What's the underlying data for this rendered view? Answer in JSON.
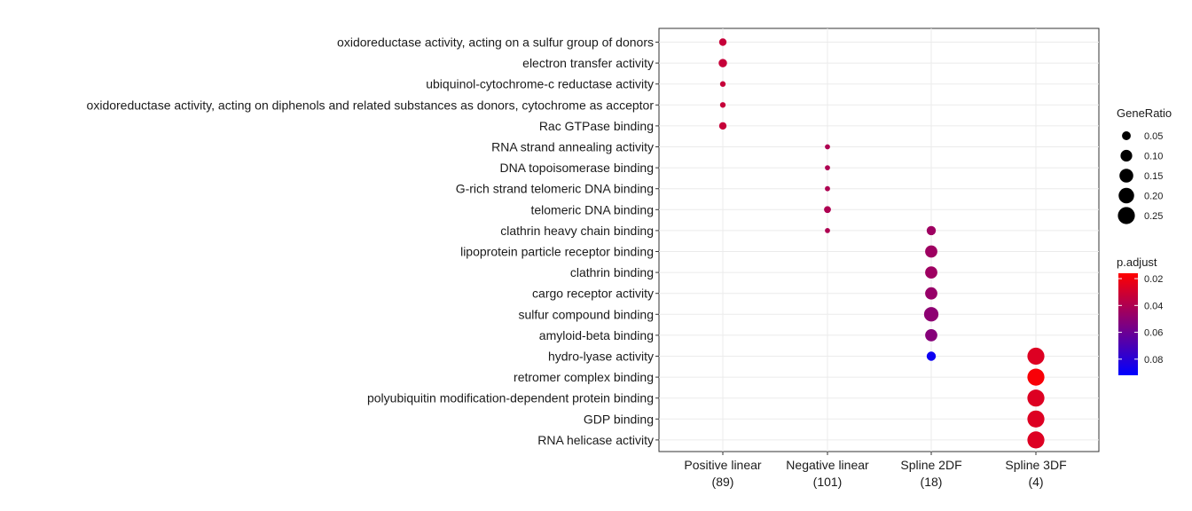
{
  "chart_data": {
    "type": "scatter",
    "title": "",
    "xlabel": "",
    "ylabel": "",
    "grid": true,
    "legend_placement": "right",
    "categories": [
      {
        "label": "Positive linear",
        "count": "(89)"
      },
      {
        "label": "Negative linear",
        "count": "(101)"
      },
      {
        "label": "Spline 2DF",
        "count": "(18)"
      },
      {
        "label": "Spline 3DF",
        "count": "(4)"
      }
    ],
    "terms": [
      "oxidoreductase activity, acting on a sulfur group of donors",
      "electron transfer activity",
      "ubiquinol-cytochrome-c reductase activity",
      "oxidoreductase activity, acting on diphenols and related substances as donors, cytochrome as acceptor",
      "Rac GTPase binding",
      "RNA strand annealing activity",
      "DNA topoisomerase binding",
      "G-rich strand telomeric DNA binding",
      "telomeric DNA binding",
      "clathrin heavy chain binding",
      "lipoprotein particle receptor binding",
      "clathrin binding",
      "cargo receptor activity",
      "sulfur compound binding",
      "amyloid-beta binding",
      "hydro-lyase activity",
      "retromer complex binding",
      "polyubiquitin modification-dependent protein binding",
      "GDP binding",
      "RNA helicase activity"
    ],
    "points": [
      {
        "cluster": 0,
        "term": 0,
        "gene_ratio": 0.035,
        "p_adjust": 0.033
      },
      {
        "cluster": 0,
        "term": 1,
        "gene_ratio": 0.045,
        "p_adjust": 0.033
      },
      {
        "cluster": 0,
        "term": 2,
        "gene_ratio": 0.022,
        "p_adjust": 0.033
      },
      {
        "cluster": 0,
        "term": 3,
        "gene_ratio": 0.022,
        "p_adjust": 0.033
      },
      {
        "cluster": 0,
        "term": 4,
        "gene_ratio": 0.035,
        "p_adjust": 0.033
      },
      {
        "cluster": 1,
        "term": 5,
        "gene_ratio": 0.02,
        "p_adjust": 0.04
      },
      {
        "cluster": 1,
        "term": 6,
        "gene_ratio": 0.02,
        "p_adjust": 0.04
      },
      {
        "cluster": 1,
        "term": 7,
        "gene_ratio": 0.02,
        "p_adjust": 0.04
      },
      {
        "cluster": 1,
        "term": 8,
        "gene_ratio": 0.03,
        "p_adjust": 0.04
      },
      {
        "cluster": 1,
        "term": 9,
        "gene_ratio": 0.02,
        "p_adjust": 0.04
      },
      {
        "cluster": 2,
        "term": 9,
        "gene_ratio": 0.056,
        "p_adjust": 0.045
      },
      {
        "cluster": 2,
        "term": 10,
        "gene_ratio": 0.111,
        "p_adjust": 0.045
      },
      {
        "cluster": 2,
        "term": 11,
        "gene_ratio": 0.111,
        "p_adjust": 0.045
      },
      {
        "cluster": 2,
        "term": 12,
        "gene_ratio": 0.111,
        "p_adjust": 0.047
      },
      {
        "cluster": 2,
        "term": 13,
        "gene_ratio": 0.167,
        "p_adjust": 0.05
      },
      {
        "cluster": 2,
        "term": 14,
        "gene_ratio": 0.111,
        "p_adjust": 0.052
      },
      {
        "cluster": 2,
        "term": 15,
        "gene_ratio": 0.056,
        "p_adjust": 0.088
      },
      {
        "cluster": 3,
        "term": 15,
        "gene_ratio": 0.25,
        "p_adjust": 0.026
      },
      {
        "cluster": 3,
        "term": 16,
        "gene_ratio": 0.25,
        "p_adjust": 0.018
      },
      {
        "cluster": 3,
        "term": 17,
        "gene_ratio": 0.25,
        "p_adjust": 0.026
      },
      {
        "cluster": 3,
        "term": 18,
        "gene_ratio": 0.25,
        "p_adjust": 0.026
      },
      {
        "cluster": 3,
        "term": 19,
        "gene_ratio": 0.25,
        "p_adjust": 0.026
      }
    ],
    "size_legend": {
      "title": "GeneRatio",
      "values": [
        0.05,
        0.1,
        0.15,
        0.2,
        0.25
      ],
      "labels": [
        "0.05",
        "0.10",
        "0.15",
        "0.20",
        "0.25"
      ]
    },
    "color_legend": {
      "title": "p.adjust",
      "range": [
        0.016,
        0.092
      ],
      "ticks": [
        0.02,
        0.04,
        0.06,
        0.08
      ],
      "tick_labels": [
        "0.02",
        "0.04",
        "0.06",
        "0.08"
      ],
      "low_value_color": "#FF0000",
      "high_value_color": "#0000FF"
    }
  }
}
